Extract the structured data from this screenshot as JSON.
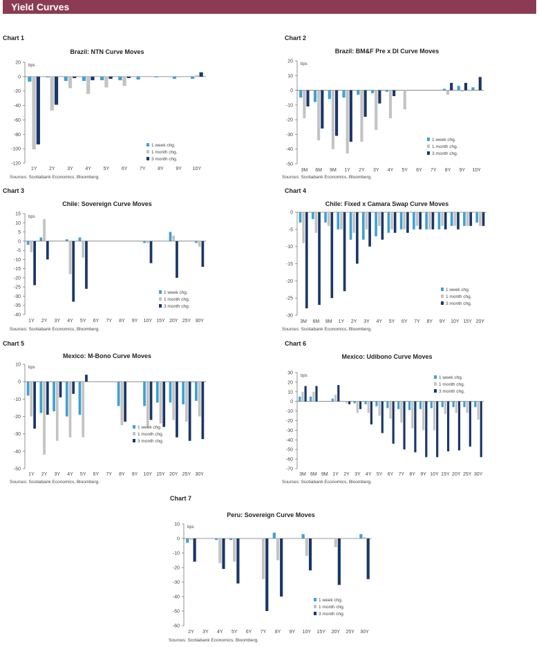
{
  "header": {
    "title": "Yield Curves"
  },
  "colors": {
    "header_bg": "#8c3b55",
    "s1": "#3ea1d4",
    "s2": "#c3c3c3",
    "s3": "#1a3768"
  },
  "charts": [
    {
      "label": "Chart 1",
      "sources": "Sources: Scotiabank Economics, Bloomberg.",
      "chart_data": {
        "type": "bar",
        "title": "Brazil: NTN Curve Moves",
        "ylabel": "bps",
        "ylim": [
          -120,
          20
        ],
        "yticks": [
          20,
          0,
          -20,
          -40,
          -60,
          -80,
          -100,
          -120
        ],
        "categories": [
          "1Y",
          "2Y",
          "3Y",
          "4Y",
          "5Y",
          "6Y",
          "7Y",
          "8Y",
          "9Y",
          "10Y"
        ],
        "series": [
          {
            "name": "1 week chg.",
            "values": [
              -7,
              -1,
              -6,
              -6,
              -5,
              -5,
              -4,
              -1,
              -3,
              -3
            ]
          },
          {
            "name": "1 month chg.",
            "values": [
              -101,
              -47,
              -16,
              -24,
              -15,
              -13,
              0,
              0,
              -1,
              2
            ]
          },
          {
            "name": "3 month chg.",
            "values": [
              -94,
              -39,
              -2,
              -5,
              -3,
              -2,
              0,
              0,
              0,
              6
            ]
          }
        ]
      }
    },
    {
      "label": "Chart 2",
      "sources": "Sources: Scotiabank Economics, Bloomberg.",
      "chart_data": {
        "type": "bar",
        "title": "Brazil: BM&F Pre x DI Curve Moves",
        "ylabel": "bps",
        "ylim": [
          -50,
          20
        ],
        "yticks": [
          20,
          10,
          0,
          -10,
          -20,
          -30,
          -40,
          -50
        ],
        "categories": [
          "3M",
          "6M",
          "9M",
          "1Y",
          "2Y",
          "3Y",
          "4Y",
          "5Y",
          "6Y",
          "7Y",
          "8Y",
          "9Y",
          "10Y"
        ],
        "series": [
          {
            "name": "1 week chg.",
            "values": [
              -5,
              -8,
              -6,
              -5,
              -3,
              -2,
              -1,
              0,
              0,
              0,
              1,
              3,
              2
            ]
          },
          {
            "name": "1 month chg.",
            "values": [
              -19,
              -34,
              -40,
              -43,
              -35,
              -27,
              -19,
              -13,
              0,
              0,
              -3,
              -1,
              0
            ]
          },
          {
            "name": "3 month chg.",
            "values": [
              -11,
              -26,
              -31,
              -35,
              -18,
              -9,
              -4,
              0,
              0,
              0,
              5,
              5,
              9
            ]
          }
        ]
      }
    },
    {
      "label": "Chart 3",
      "sources": "Sources: Scotiabank Economics, Bloomberg.",
      "chart_data": {
        "type": "bar",
        "title": "Chile: Sovereign Curve Moves",
        "ylabel": "bps",
        "ylim": [
          -40,
          15
        ],
        "yticks": [
          15,
          10,
          5,
          0,
          -5,
          -10,
          -15,
          -20,
          -25,
          -30,
          -35,
          -40
        ],
        "categories": [
          "1Y",
          "2Y",
          "3Y",
          "4Y",
          "5Y",
          "6Y",
          "7Y",
          "8Y",
          "9Y",
          "10Y",
          "15Y",
          "20Y",
          "25Y",
          "30Y"
        ],
        "series": [
          {
            "name": "1 week chg.",
            "values": [
              -2,
              2,
              0,
              1,
              2,
              0,
              0,
              0,
              0,
              -1,
              0,
              5,
              0,
              -1
            ]
          },
          {
            "name": "1 month chg.",
            "values": [
              -6,
              12,
              0,
              -18,
              -9,
              0,
              0,
              0,
              0,
              -1,
              0,
              3,
              0,
              -3
            ]
          },
          {
            "name": "3 month chg.",
            "values": [
              -24,
              -10,
              0,
              -33,
              -26,
              0,
              0,
              0,
              0,
              -12,
              0,
              -20,
              0,
              -14
            ]
          }
        ]
      }
    },
    {
      "label": "Chart 4",
      "sources": "Sources: Scotiabank Economics, Bloomberg.",
      "chart_data": {
        "type": "bar",
        "title": "Chile: Fixed x Camara Swap Curve Moves",
        "ylabel": "",
        "ylim": [
          -30,
          0
        ],
        "yticks": [
          0,
          -5,
          -10,
          -15,
          -20,
          -25,
          -30
        ],
        "categories": [
          "3M",
          "6M",
          "9M",
          "1Y",
          "2Y",
          "3Y",
          "4Y",
          "5Y",
          "6Y",
          "7Y",
          "8Y",
          "9Y",
          "10Y",
          "15Y",
          "20Y"
        ],
        "series": [
          {
            "name": "1 week chg.",
            "values": [
              -3,
              -2,
              -3,
              -5,
              -8,
              -8,
              -7,
              -6,
              -5,
              -5,
              -5,
              -5,
              -4,
              -4,
              -3
            ]
          },
          {
            "name": "1 month chg.",
            "values": [
              -9,
              -6,
              -4,
              -5,
              -6,
              -5,
              -4,
              -5,
              -5,
              -4,
              -5,
              -4,
              -4,
              -4,
              -4
            ]
          },
          {
            "name": "3 month chg.",
            "values": [
              -28,
              -27,
              -25,
              -23,
              -15,
              -10,
              -8,
              -6,
              -6,
              -5,
              -5,
              -5,
              -5,
              -4,
              -4
            ]
          }
        ]
      }
    },
    {
      "label": "Chart 5",
      "sources": "Sources: Scotiabank Economics, Bloomberg.",
      "chart_data": {
        "type": "bar",
        "title": "Mexico: M-Bono Curve Moves",
        "ylabel": "bps",
        "ylim": [
          -50,
          10
        ],
        "yticks": [
          10,
          0,
          -10,
          -20,
          -30,
          -40,
          -50
        ],
        "categories": [
          "1Y",
          "2Y",
          "3Y",
          "4Y",
          "5Y",
          "6Y",
          "7Y",
          "8Y",
          "9Y",
          "10Y",
          "15Y",
          "20Y",
          "25Y",
          "30Y"
        ],
        "series": [
          {
            "name": "1 week chg.",
            "values": [
              -8,
              -18,
              -17,
              -20,
              -19,
              0,
              0,
              -14,
              0,
              -14,
              -12,
              -12,
              -13,
              -11
            ]
          },
          {
            "name": "1 month chg.",
            "values": [
              -20,
              -42,
              -34,
              -32,
              -32,
              0,
              0,
              -25,
              0,
              -26,
              -24,
              -22,
              -23,
              -20
            ]
          },
          {
            "name": "3 month chg.",
            "values": [
              -27,
              -19,
              -9,
              -7,
              4,
              0,
              0,
              -23,
              0,
              -22,
              -26,
              -32,
              -34,
              -33
            ]
          }
        ]
      }
    },
    {
      "label": "Chart 6",
      "sources": "Sources: Scotiabank Economics, Bloomberg.",
      "chart_data": {
        "type": "bar",
        "title": "Mexico: Udibono Curve Moves",
        "ylabel": "bps",
        "ylim": [
          -70,
          30
        ],
        "yticks": [
          30,
          20,
          10,
          0,
          -10,
          -20,
          -30,
          -40,
          -50,
          -60,
          -70
        ],
        "categories": [
          "3M",
          "6M",
          "9M",
          "1Y",
          "2Y",
          "3Y",
          "4Y",
          "5Y",
          "6Y",
          "7Y",
          "8Y",
          "9Y",
          "10Y",
          "15Y",
          "20Y",
          "25Y",
          "30Y"
        ],
        "series": [
          {
            "name": "1 week chg.",
            "values": [
              5,
              5,
              0,
              3,
              0,
              -2,
              -3,
              -5,
              -7,
              -8,
              -9,
              -8,
              -7,
              -6,
              -6,
              -6,
              -6
            ]
          },
          {
            "name": "1 month chg.",
            "values": [
              10,
              10,
              0,
              7,
              -2,
              -12,
              -12,
              -15,
              -18,
              -22,
              -28,
              -30,
              -30,
              -13,
              -12,
              -12,
              -19
            ]
          },
          {
            "name": "3 month chg.",
            "values": [
              16,
              16,
              0,
              17,
              -3,
              -8,
              -24,
              -33,
              -44,
              -50,
              -53,
              -58,
              -58,
              -52,
              -51,
              -47,
              -58
            ]
          }
        ]
      }
    },
    {
      "label": "Chart 7",
      "sources": "Sources: Scotiabank Economics, Bloomberg.",
      "chart_data": {
        "type": "bar",
        "title": "Peru: Sovereign Curve Moves",
        "ylabel": "bps",
        "ylim": [
          -60,
          10
        ],
        "yticks": [
          10,
          0,
          -10,
          -20,
          -30,
          -40,
          -50,
          -60
        ],
        "categories": [
          "2Y",
          "3Y",
          "4Y",
          "5Y",
          "6Y",
          "7Y",
          "8Y",
          "9Y",
          "10Y",
          "15Y",
          "20Y",
          "25Y",
          "30Y"
        ],
        "series": [
          {
            "name": "1 week chg.",
            "values": [
              -3,
              0,
              -1,
              -1,
              0,
              0,
              4,
              0,
              3,
              0,
              0,
              0,
              3
            ]
          },
          {
            "name": "1 month chg.",
            "values": [
              -1,
              0,
              -17,
              -16,
              0,
              -28,
              -15,
              0,
              -12,
              0,
              -6,
              0,
              1
            ]
          },
          {
            "name": "3 month chg.",
            "values": [
              -16,
              0,
              -21,
              -31,
              0,
              -50,
              -40,
              0,
              -22,
              0,
              -32,
              0,
              -28
            ]
          }
        ]
      }
    }
  ]
}
